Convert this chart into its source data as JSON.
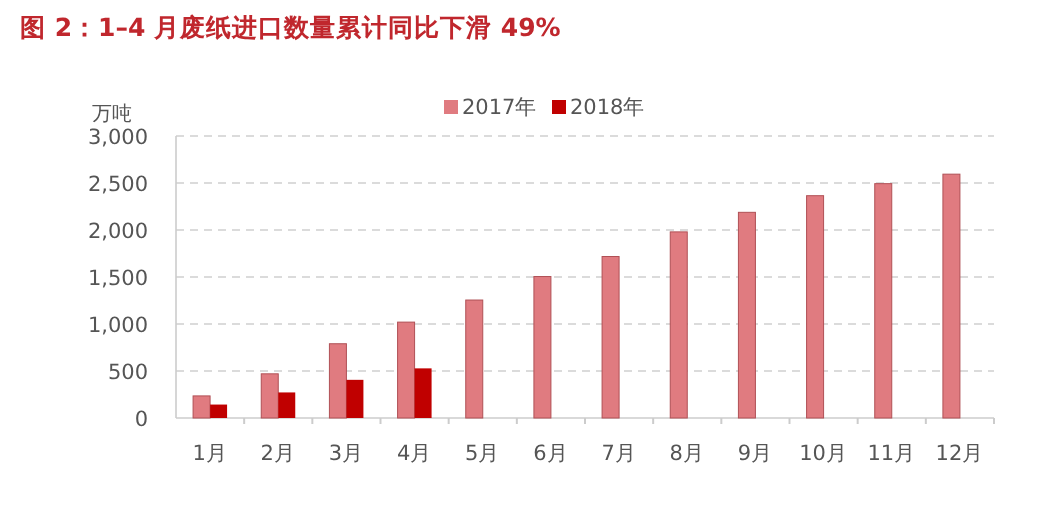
{
  "chart_data": {
    "type": "bar",
    "title": "图 2：1–4 月废纸进口数量累计同比下滑 49%",
    "ylabel": "万吨",
    "categories": [
      "1月",
      "2月",
      "3月",
      "4月",
      "5月",
      "6月",
      "7月",
      "8月",
      "9月",
      "10月",
      "11月",
      "12月"
    ],
    "series": [
      {
        "name": "2017年",
        "color": "#e07b80",
        "values": [
          235,
          470,
          790,
          1020,
          1255,
          1505,
          1718,
          1980,
          2188,
          2365,
          2493,
          2594
        ]
      },
      {
        "name": "2018年",
        "color": "#c00000",
        "values": [
          143,
          272,
          406,
          528,
          null,
          null,
          null,
          null,
          null,
          null,
          null,
          null
        ]
      }
    ],
    "ylim": [
      0,
      3000
    ],
    "yticks": [
      0,
      500,
      {
        "value": 1000,
        "label": "1,000"
      },
      {
        "value": 1500,
        "label": "1,500"
      },
      {
        "value": 2000,
        "label": "2,000"
      },
      {
        "value": 2500,
        "label": "2,500"
      },
      {
        "value": 3000,
        "label": "3,000"
      }
    ],
    "grid": "y",
    "legend": "top"
  }
}
